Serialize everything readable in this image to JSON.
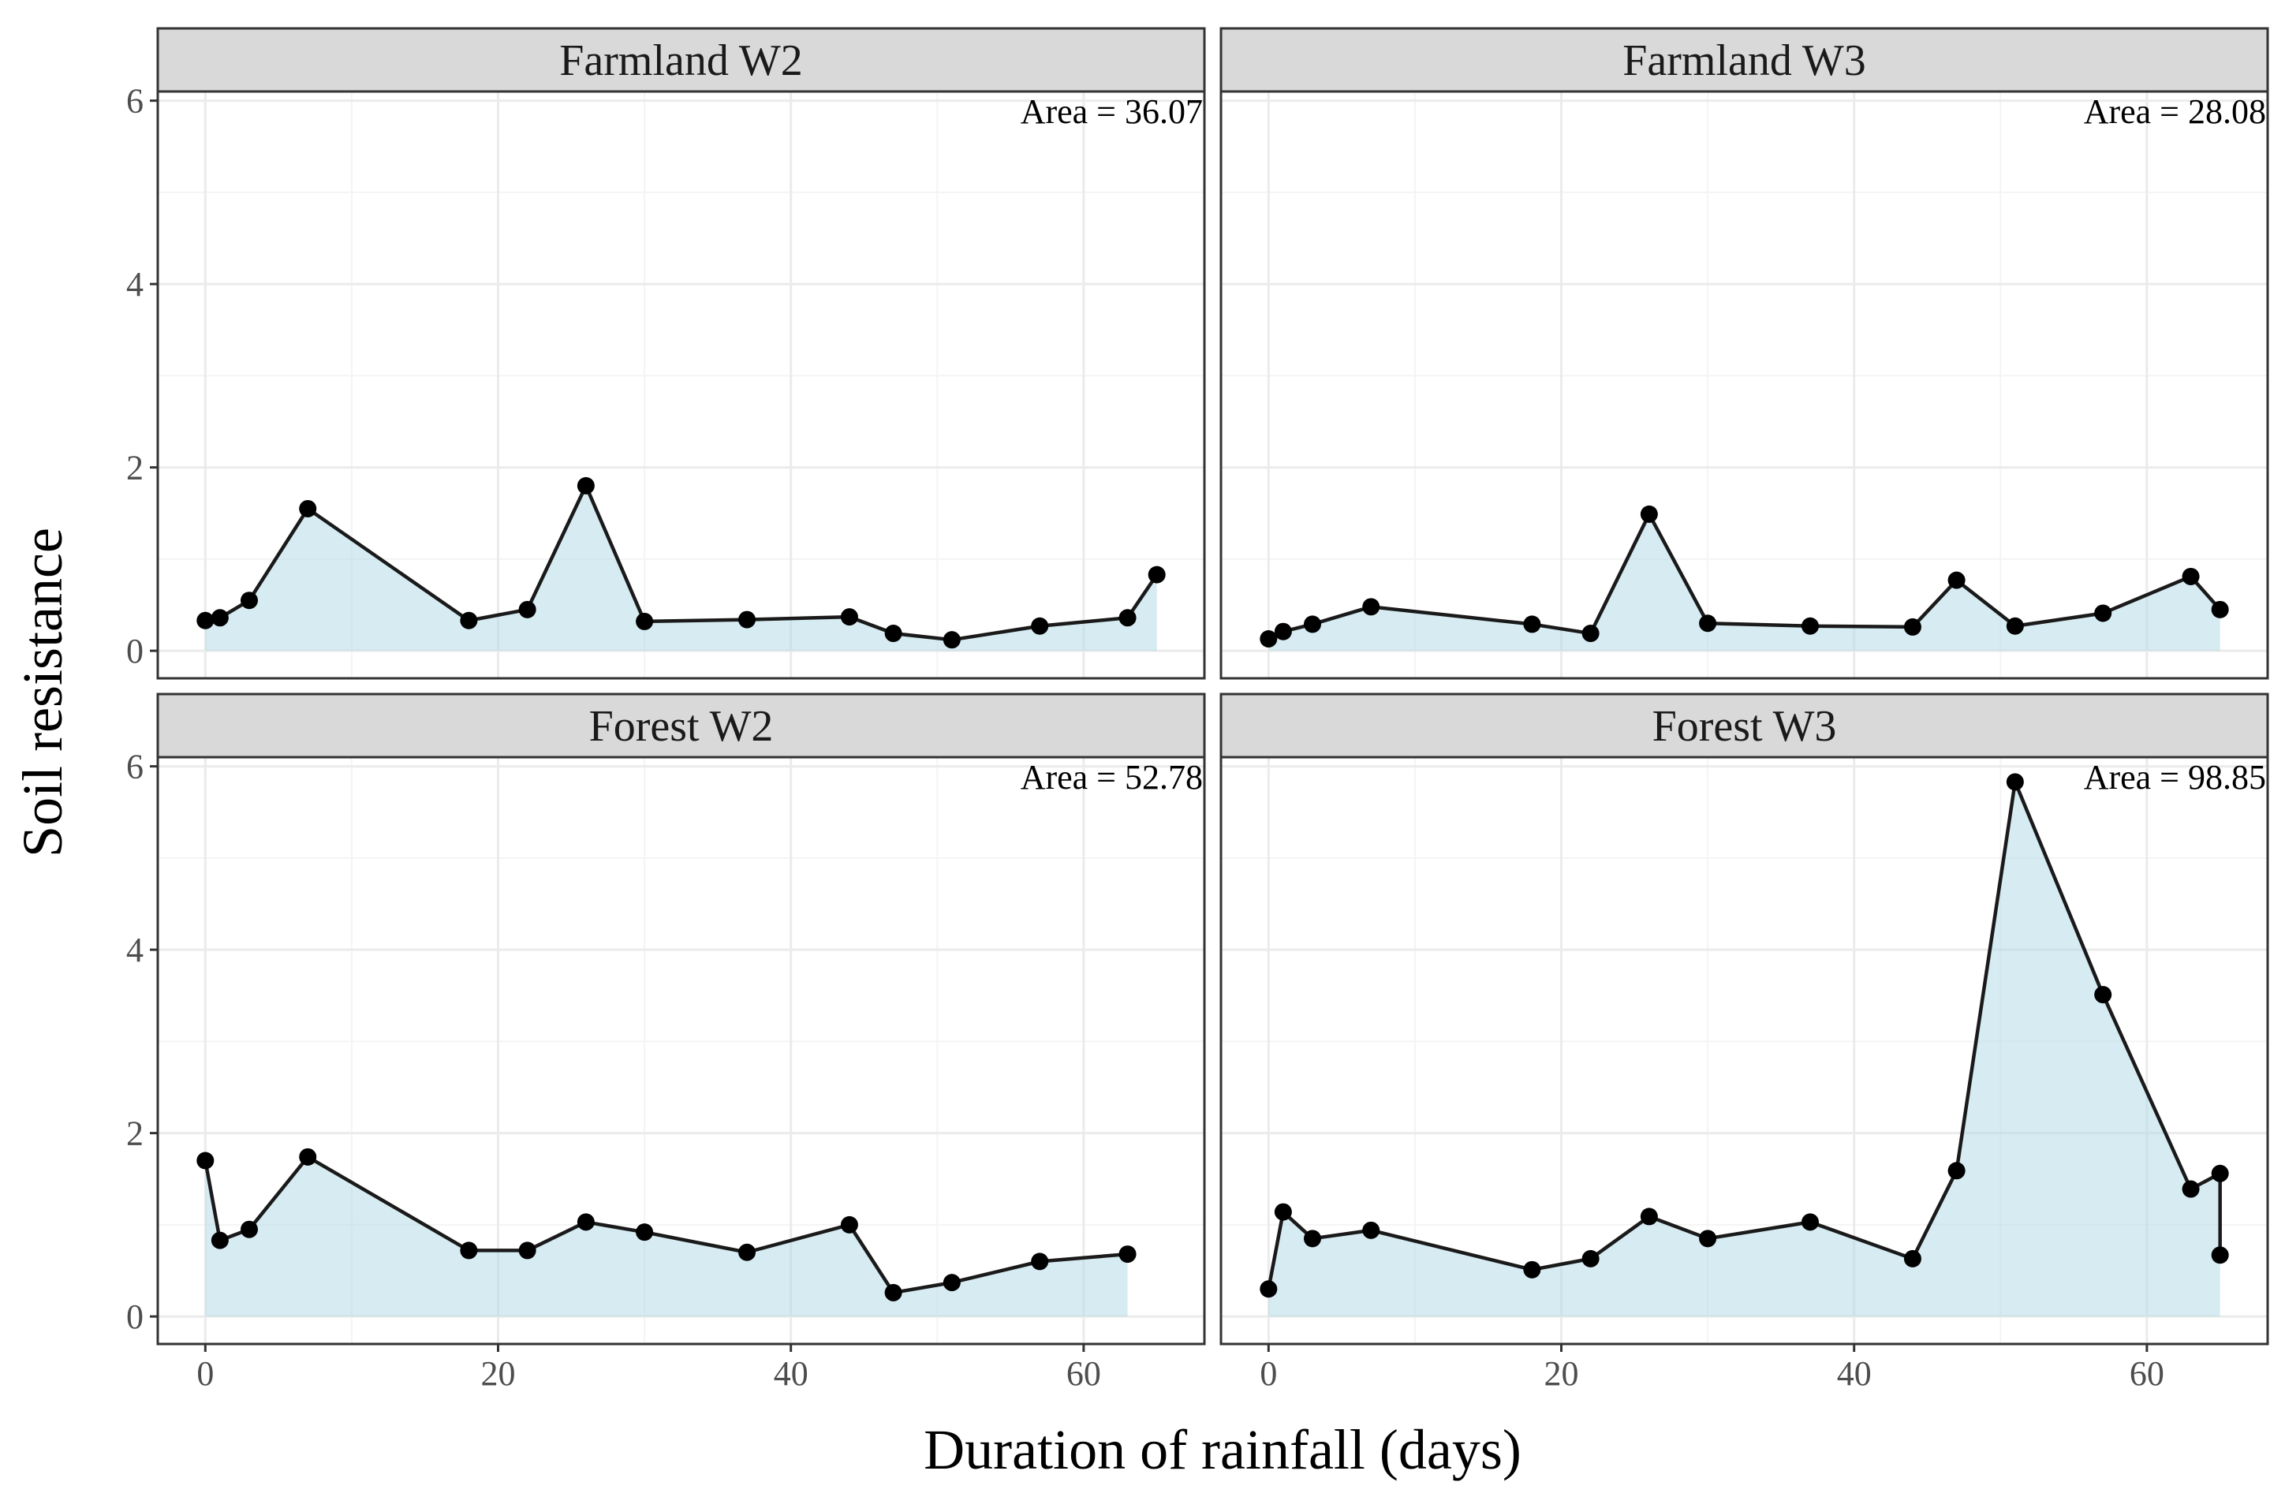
{
  "chart_data": {
    "type": "area",
    "xlabel": "Duration of rainfall (days)",
    "ylabel": "Soil resistance",
    "xlim": [
      -3.25,
      68.25
    ],
    "ylim": [
      -0.3,
      6.1
    ],
    "x_ticks": [
      0,
      20,
      40,
      60
    ],
    "y_ticks": [
      0,
      2,
      4,
      6
    ],
    "facets": [
      {
        "title": "Farmland W2",
        "area_label": "Area = 36.07",
        "x": [
          0,
          1,
          3,
          7,
          18,
          22,
          26,
          30,
          37,
          44,
          47,
          51,
          57,
          63,
          65
        ],
        "y": [
          0.33,
          0.36,
          0.55,
          1.55,
          0.33,
          0.45,
          1.8,
          0.32,
          0.34,
          0.37,
          0.19,
          0.12,
          0.27,
          0.36,
          0.83
        ]
      },
      {
        "title": "Farmland W3",
        "area_label": "Area = 28.08",
        "x": [
          0,
          1,
          3,
          7,
          18,
          22,
          26,
          30,
          37,
          44,
          47,
          51,
          57,
          63,
          65
        ],
        "y": [
          0.13,
          0.21,
          0.29,
          0.48,
          0.29,
          0.19,
          1.49,
          0.3,
          0.27,
          0.26,
          0.77,
          0.27,
          0.41,
          0.81,
          0.45
        ]
      },
      {
        "title": "Forest W2",
        "area_label": "Area = 52.78",
        "x": [
          0,
          1,
          3,
          7,
          18,
          22,
          26,
          30,
          37,
          44,
          47,
          51,
          57,
          63
        ],
        "y": [
          1.7,
          0.83,
          0.95,
          1.74,
          0.72,
          0.72,
          1.03,
          0.92,
          0.7,
          1.0,
          0.26,
          0.37,
          0.6,
          0.68
        ]
      },
      {
        "title": "Forest W3",
        "area_label": "Area = 98.85",
        "x": [
          0,
          1,
          3,
          7,
          18,
          22,
          26,
          30,
          37,
          44,
          47,
          51,
          57,
          63,
          65,
          65
        ],
        "y": [
          0.3,
          1.14,
          0.85,
          0.94,
          0.51,
          0.63,
          1.09,
          0.85,
          1.03,
          0.63,
          1.59,
          5.83,
          3.51,
          1.39,
          1.56,
          0.67
        ]
      }
    ]
  },
  "colors": {
    "area_fill": "#add8e6",
    "line": "#1a1a1a",
    "points": "#000000",
    "strip_bg": "#d9d9d9"
  }
}
